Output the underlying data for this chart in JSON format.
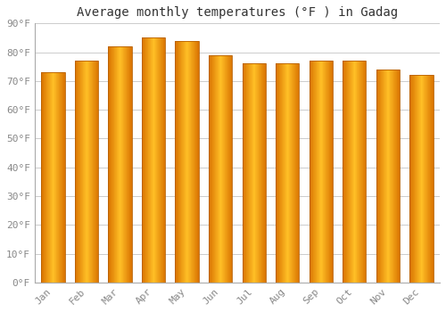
{
  "title": "Average monthly temperatures (°F ) in Gadag",
  "months": [
    "Jan",
    "Feb",
    "Mar",
    "Apr",
    "May",
    "Jun",
    "Jul",
    "Aug",
    "Sep",
    "Oct",
    "Nov",
    "Dec"
  ],
  "values": [
    73,
    77,
    82,
    85,
    84,
    79,
    76,
    76,
    77,
    77,
    74,
    72
  ],
  "bar_color_center": "#FFB300",
  "bar_color_edge": "#E07000",
  "bar_color_mid": "#FFA500",
  "background_color": "#FFFFFF",
  "plot_bg_color": "#FFFFFF",
  "grid_color": "#CCCCCC",
  "ylim": [
    0,
    90
  ],
  "yticks": [
    0,
    10,
    20,
    30,
    40,
    50,
    60,
    70,
    80,
    90
  ],
  "ytick_labels": [
    "0°F",
    "10°F",
    "20°F",
    "30°F",
    "40°F",
    "50°F",
    "60°F",
    "70°F",
    "80°F",
    "90°F"
  ],
  "title_fontsize": 10,
  "tick_fontsize": 8,
  "tick_color": "#888888",
  "title_color": "#333333",
  "bar_width": 0.7,
  "n_grad": 60
}
